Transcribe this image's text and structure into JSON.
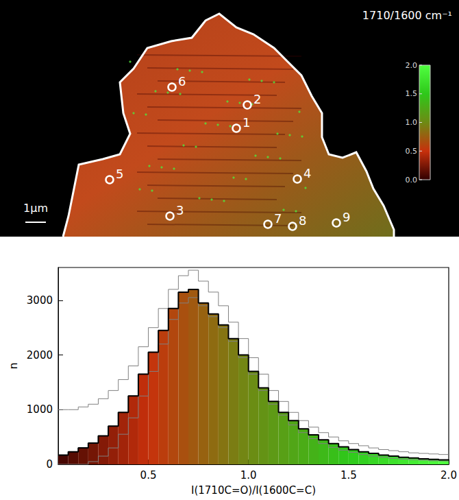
{
  "image_panel": {
    "title": "1710/1600 cm⁻¹",
    "scale_bar": "1µm",
    "points": [
      "1",
      "2",
      "3",
      "4",
      "5",
      "6",
      "7",
      "8",
      "9"
    ],
    "colorbar": {
      "range": [
        0,
        2
      ],
      "ticks": [
        {
          "value": 0,
          "label": "0.0"
        },
        0.5,
        {
          "value": 1,
          "label": "1.0"
        },
        1.5,
        {
          "value": 2,
          "label": "2.0"
        }
      ]
    }
  },
  "chart_data": {
    "type": "histogram",
    "xlabel": "I(1710C=O)/I(1600C=C)",
    "ylabel": "n",
    "xlim": [
      0.05,
      2.0
    ],
    "xticks": [
      0.5,
      {
        "value": 1.0,
        "label": "1.0"
      },
      1.5,
      {
        "value": 2.0,
        "label": "2.0"
      }
    ],
    "ylim": [
      0,
      3600
    ],
    "yticks": [
      0,
      1000,
      2000,
      3000
    ],
    "grid": false,
    "bins": [
      0.05,
      0.1,
      0.15,
      0.2,
      0.25,
      0.3,
      0.35,
      0.4,
      0.45,
      0.5,
      0.55,
      0.6,
      0.65,
      0.7,
      0.75,
      0.8,
      0.85,
      0.9,
      0.95,
      1.0,
      1.05,
      1.1,
      1.15,
      1.2,
      1.25,
      1.3,
      1.35,
      1.4,
      1.45,
      1.5,
      1.55,
      1.6,
      1.65,
      1.7,
      1.75,
      1.8,
      1.85,
      1.9,
      1.95,
      2.0
    ],
    "series": [
      {
        "type": "histogram",
        "color": "#000000",
        "values": [
          170,
          230,
          300,
          390,
          520,
          700,
          950,
          1250,
          1650,
          2050,
          2450,
          2850,
          3150,
          3200,
          2950,
          2750,
          2550,
          2300,
          2000,
          1700,
          1400,
          1150,
          950,
          800,
          650,
          540,
          450,
          380,
          320,
          270,
          230,
          200,
          170,
          150,
          130,
          115,
          100,
          90,
          80
        ]
      },
      {
        "type": "step",
        "color": "#808080",
        "values": [
          1000,
          1000,
          1050,
          1100,
          1200,
          1350,
          1550,
          1800,
          2150,
          2500,
          2850,
          3200,
          3450,
          3550,
          3350,
          3150,
          2900,
          2600,
          2300,
          1950,
          1650,
          1350,
          1150,
          950,
          800,
          680,
          580,
          500,
          430,
          380,
          340,
          300,
          270,
          250,
          230,
          210,
          200,
          190,
          180
        ]
      },
      {
        "type": "step",
        "color": "#808080",
        "values": [
          0,
          0,
          0,
          50,
          150,
          300,
          550,
          850,
          1250,
          1700,
          2200,
          2650,
          2950,
          3050,
          2900,
          2700,
          2500,
          2250,
          1950,
          1650,
          1350,
          1100,
          900,
          720,
          580,
          470,
          380,
          310,
          260,
          220,
          180,
          150,
          130,
          110,
          95,
          85,
          75,
          65,
          60
        ]
      }
    ]
  }
}
